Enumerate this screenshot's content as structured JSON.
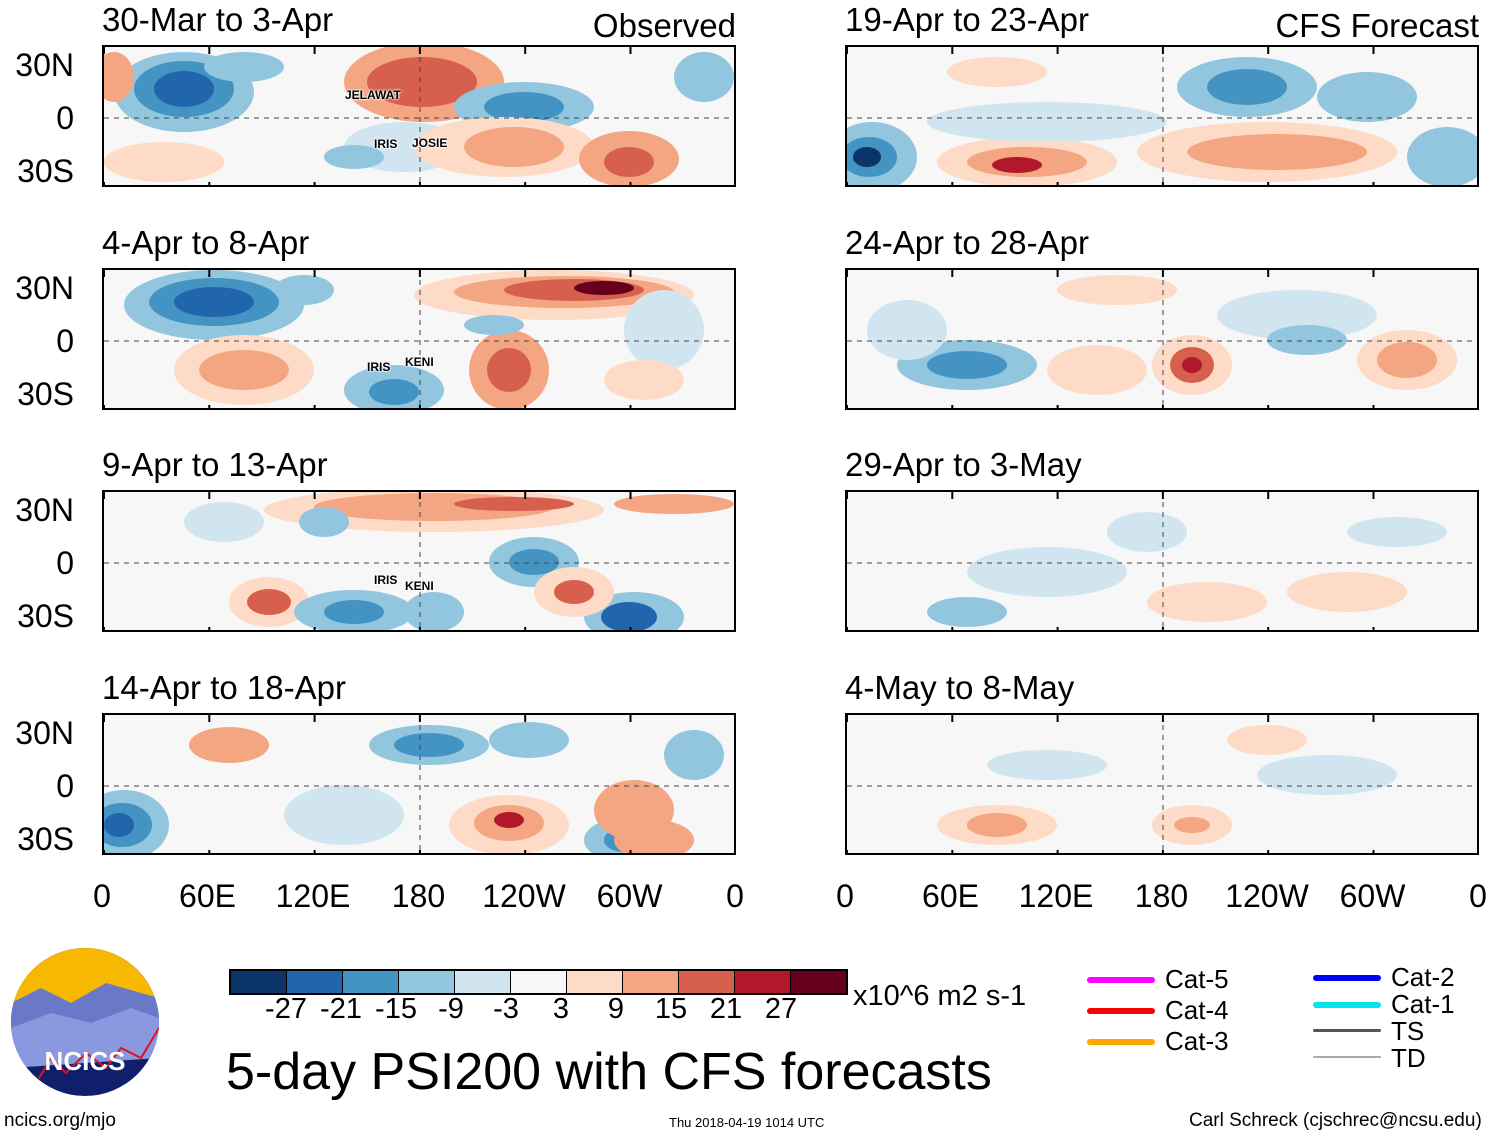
{
  "panels": [
    {
      "title": "30-Mar to 3-Apr",
      "label": "Observed",
      "storms": [
        "JELAWAT",
        "IRIS",
        "JOSIE"
      ]
    },
    {
      "title": "4-Apr to 8-Apr",
      "storms": [
        "IRIS",
        "KENI"
      ]
    },
    {
      "title": "9-Apr to 13-Apr",
      "storms": [
        "IRIS",
        "KENI"
      ]
    },
    {
      "title": "14-Apr to 18-Apr"
    },
    {
      "title": "19-Apr to 23-Apr",
      "label": "CFS Forecast"
    },
    {
      "title": "24-Apr to 28-Apr"
    },
    {
      "title": "29-Apr to 3-May"
    },
    {
      "title": "4-May to 8-May"
    }
  ],
  "lat_labels": [
    "30N",
    "0",
    "30S"
  ],
  "lon_labels": [
    "0",
    "60E",
    "120E",
    "180",
    "120W",
    "60W",
    "0"
  ],
  "colorbar": {
    "colors": [
      "#0b3468",
      "#2166ac",
      "#4393c3",
      "#92c5de",
      "#d1e5f0",
      "#f7f7f7",
      "#fddbc7",
      "#f4a582",
      "#d6604d",
      "#b2182b",
      "#67001f"
    ],
    "labels": [
      "-27",
      "-21",
      "-15",
      "-9",
      "-3",
      "3",
      "9",
      "15",
      "21",
      "27"
    ],
    "units": "x10^6 m2 s-1"
  },
  "title": "5-day PSI200 with CFS forecasts",
  "logo_text": "NCICS",
  "legend": [
    {
      "label": "Cat-5",
      "color": "#ff00ff"
    },
    {
      "label": "Cat-4",
      "color": "#ff0000"
    },
    {
      "label": "Cat-3",
      "color": "#ffa500"
    },
    {
      "label": "Cat-2",
      "color": "#0000ff"
    },
    {
      "label": "Cat-1",
      "color": "#00e5ee"
    },
    {
      "label": "TS",
      "color": "#555555"
    },
    {
      "label": "TD",
      "color": "#aaaaaa"
    }
  ],
  "footer": {
    "left": "ncics.org/mjo",
    "center": "Thu 2018-04-19 1014 UTC",
    "right": "Carl Schreck (cjschrec@ncsu.edu)"
  }
}
